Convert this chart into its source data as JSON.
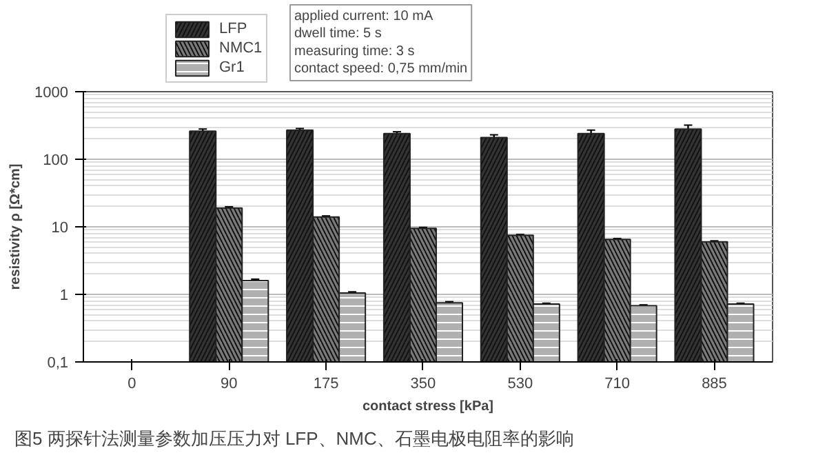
{
  "chart_data": {
    "type": "bar",
    "xlabel": "contact stress [kPa]",
    "ylabel": "resistivity ρ [Ω*cm]",
    "categories": [
      "0",
      "90",
      "175",
      "350",
      "530",
      "710",
      "885"
    ],
    "series": [
      {
        "name": "LFP",
        "color": "#333333",
        "values": [
          null,
          260,
          270,
          240,
          210,
          240,
          280
        ],
        "errors": [
          null,
          20,
          15,
          15,
          20,
          30,
          40
        ]
      },
      {
        "name": "NMC1",
        "color": "#7a7a7a",
        "values": [
          null,
          19,
          14,
          9.5,
          7.5,
          6.5,
          6
        ],
        "errors": [
          null,
          0.8,
          0.5,
          0.3,
          0.2,
          0.2,
          0.2
        ]
      },
      {
        "name": "Gr1",
        "color": "#b0b0b0",
        "values": [
          null,
          1.6,
          1.05,
          0.75,
          0.72,
          0.68,
          0.72
        ],
        "errors": [
          null,
          0.08,
          0.04,
          0.03,
          0.02,
          0.02,
          0.02
        ]
      }
    ],
    "log": "y",
    "ylim": [
      0.1,
      1000
    ],
    "yticks": [
      {
        "value": 0.1,
        "label": "0,1"
      },
      1,
      10,
      100,
      1000
    ],
    "grid": "y",
    "legend": "top left",
    "annotations": [
      "applied current: 10 mA\ndwell time: 5 s\nmeasuring time: 3 s\ncontact speed: 0,75 mm/min",
      "图5   两探针法测量参数加压压力对 LFP、NMC、石墨电极电阻率的影响"
    ]
  }
}
